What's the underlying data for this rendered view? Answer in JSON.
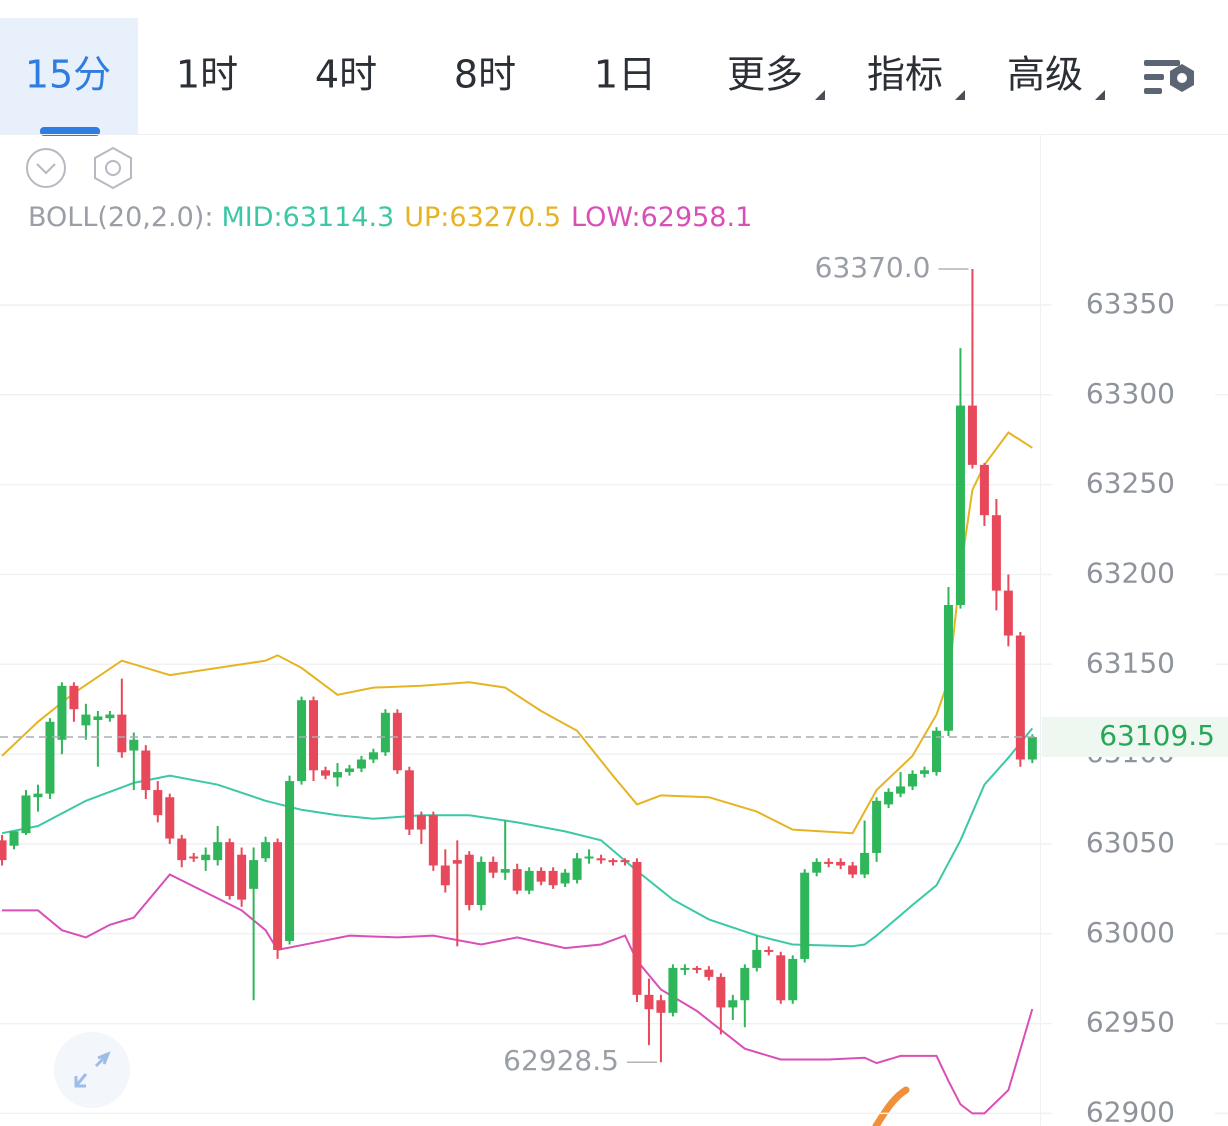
{
  "tabs": {
    "items": [
      "15分",
      "1时",
      "4时",
      "8时",
      "1日",
      "更多",
      "指标",
      "高级"
    ],
    "active": 0
  },
  "chart_data": {
    "type": "candlestick",
    "indicator": {
      "label": "BOLL(20,2.0):",
      "values": [
        "MID:63114.3",
        "UP:63270.5",
        "LOW:62958.1"
      ]
    },
    "up_color": "#2fb55a",
    "down_color": "#e8495a",
    "open": [
      63052,
      63049,
      63056,
      63076,
      63078,
      63108,
      63138,
      63116,
      63119,
      63120,
      63122,
      63102,
      63102,
      63080,
      63076,
      63053,
      63043,
      63041,
      63041,
      63051,
      63044,
      63025,
      63042,
      63051,
      62996,
      63085,
      63130,
      63091,
      63087,
      63090,
      63092,
      63097,
      63101,
      63123,
      63091,
      63066,
      63066,
      63038,
      63041,
      63044,
      63016,
      63040,
      63034,
      63036,
      63024,
      63035,
      63035,
      63028,
      63030,
      63042,
      63042,
      63041,
      63041,
      63040,
      62966,
      62963,
      62956,
      62980,
      62981,
      62980,
      62976,
      62959,
      62963,
      62981,
      62991,
      62988,
      62963,
      62986,
      63034,
      63040,
      63040,
      63038,
      63033,
      63045,
      63072,
      63078,
      63082,
      63089,
      63090,
      63113,
      63183,
      63294,
      63261,
      63233,
      63191,
      63166,
      63097
    ],
    "high": [
      63055,
      63057,
      63080,
      63083,
      63120,
      63140,
      63140,
      63128,
      63124,
      63124,
      63142,
      63112,
      63105,
      63085,
      63078,
      63055,
      63045,
      63048,
      63060,
      63053,
      63048,
      63048,
      63054,
      63053,
      63088,
      63132,
      63132,
      63093,
      63095,
      63094,
      63099,
      63103,
      63125,
      63125,
      63093,
      63068,
      63068,
      63047,
      63052,
      63046,
      63043,
      63043,
      63063,
      63039,
      63037,
      63037,
      63037,
      63036,
      63045,
      63047,
      63044,
      63042,
      63042,
      63042,
      62975,
      62966,
      62983,
      62983,
      62982,
      62982,
      62978,
      62966,
      62983,
      62999,
      62993,
      62990,
      62988,
      63036,
      63042,
      63042,
      63042,
      63040,
      63063,
      63076,
      63081,
      63090,
      63091,
      63093,
      63115,
      63193,
      63326,
      63370,
      63262,
      63242,
      63200,
      63168,
      63111
    ],
    "low": [
      63038,
      63047,
      63055,
      63068,
      63075,
      63100,
      63118,
      63108,
      63093,
      63118,
      63098,
      63080,
      63075,
      63062,
      63050,
      63037,
      63040,
      63035,
      63038,
      63019,
      63015,
      62963,
      63040,
      62986,
      62994,
      63083,
      63085,
      63086,
      63082,
      63088,
      63090,
      63095,
      63099,
      63089,
      63055,
      63050,
      63035,
      63023,
      62993,
      63013,
      63013,
      63031,
      63030,
      63022,
      63022,
      63027,
      63025,
      63026,
      63028,
      63039,
      63039,
      63038,
      63038,
      62962,
      62938,
      62928.5,
      62954,
      62977,
      62978,
      62974,
      62944,
      62952,
      62948,
      62979,
      62988,
      62961,
      62961,
      62984,
      63032,
      63037,
      63036,
      63031,
      63031,
      63040,
      63070,
      63076,
      63080,
      63087,
      63088,
      63110,
      63181,
      63259,
      63227,
      63180,
      63160,
      63093,
      63095
    ],
    "close": [
      63041,
      63057,
      63077,
      63078,
      63118,
      63138,
      63125,
      63122,
      63121,
      63122,
      63101,
      63108,
      63080,
      63066,
      63053,
      63041,
      63042,
      63044,
      63051,
      63021,
      63019,
      63041,
      63051,
      62991,
      63085,
      63130,
      63091,
      63088,
      63090,
      63092,
      63097,
      63101,
      63123,
      63091,
      63058,
      63058,
      63038,
      63027,
      63039,
      63016,
      63040,
      63034,
      63036,
      63024,
      63035,
      63029,
      63027,
      63034,
      63042,
      63043,
      63041,
      63040,
      63040,
      62966,
      62958,
      62956,
      62981,
      62981,
      62980,
      62976,
      62959,
      62963,
      62981,
      62991,
      62990,
      62963,
      62986,
      63034,
      63040,
      63039,
      63038,
      63033,
      63045,
      63074,
      63079,
      63082,
      63089,
      63091,
      63113,
      63183,
      63294,
      63261,
      63233,
      63191,
      63166,
      63097,
      63109.5
    ],
    "bands": [
      {
        "color": "#3cc8a6",
        "x": [
          0,
          3,
          7,
          11,
          14,
          18,
          22,
          25,
          28,
          31,
          35,
          39,
          43,
          47,
          50,
          53,
          56,
          59,
          63,
          66,
          71,
          72,
          73,
          76,
          78,
          80,
          82,
          84,
          86
        ],
        "values": [
          63056,
          63060,
          63074,
          63084,
          63088,
          63083,
          63074,
          63069,
          63066,
          63064,
          63066,
          63066,
          63062,
          63057,
          63052,
          63035,
          63019,
          63008,
          62999,
          62994,
          62993,
          62994,
          62999,
          63016,
          63027,
          63052,
          63083,
          63098,
          63114.3
        ]
      },
      {
        "color": "#e6b422",
        "x": [
          0,
          3,
          6,
          10,
          14,
          18,
          22,
          23,
          25,
          28,
          31,
          35,
          39,
          42,
          45,
          48,
          51,
          53,
          55,
          59,
          63,
          66,
          71,
          73,
          76,
          78,
          79,
          80,
          81,
          82,
          84,
          86
        ],
        "values": [
          63099,
          63118,
          63134,
          63152,
          63144,
          63148,
          63152,
          63155,
          63148,
          63133,
          63137,
          63138,
          63140,
          63137,
          63124,
          63113,
          63088,
          63072,
          63077,
          63076,
          63068,
          63058,
          63056,
          63080,
          63099,
          63122,
          63141,
          63202,
          63247,
          63261,
          63279,
          63270.5
        ]
      },
      {
        "color": "#d94fb8",
        "x": [
          0,
          3,
          5,
          7,
          9,
          11,
          14,
          17,
          20,
          22,
          23,
          26,
          29,
          33,
          36,
          40,
          43,
          47,
          50,
          52,
          53,
          55,
          58,
          62,
          65,
          69,
          72,
          73,
          75,
          78,
          79,
          80,
          81,
          82,
          84,
          86
        ],
        "values": [
          63013,
          63013,
          63002,
          62998,
          63005,
          63009,
          63033,
          63023,
          63013,
          63002,
          62991,
          62995,
          62999,
          62998,
          62999,
          62994,
          62998,
          62992,
          62994,
          62999,
          62985,
          62969,
          62957,
          62936,
          62930,
          62930,
          62931,
          62928,
          62932,
          62932,
          62918,
          62905,
          62900,
          62900,
          62913,
          62958.1
        ]
      }
    ],
    "current_price": 63109.5,
    "current_color": "#27a657",
    "annotations": [
      {
        "index": 81,
        "value": 63370,
        "label": "63370.0"
      },
      {
        "index": 55,
        "value": 62928.5,
        "label": "62928.5"
      }
    ],
    "xlim": [
      -0.17,
      86.64
    ],
    "ylim": [
      62893,
      63380.6
    ],
    "yticks": [
      62900,
      62950,
      63000,
      63050,
      63100,
      63150,
      63200,
      63250,
      63300,
      63350
    ],
    "grid": true
  }
}
